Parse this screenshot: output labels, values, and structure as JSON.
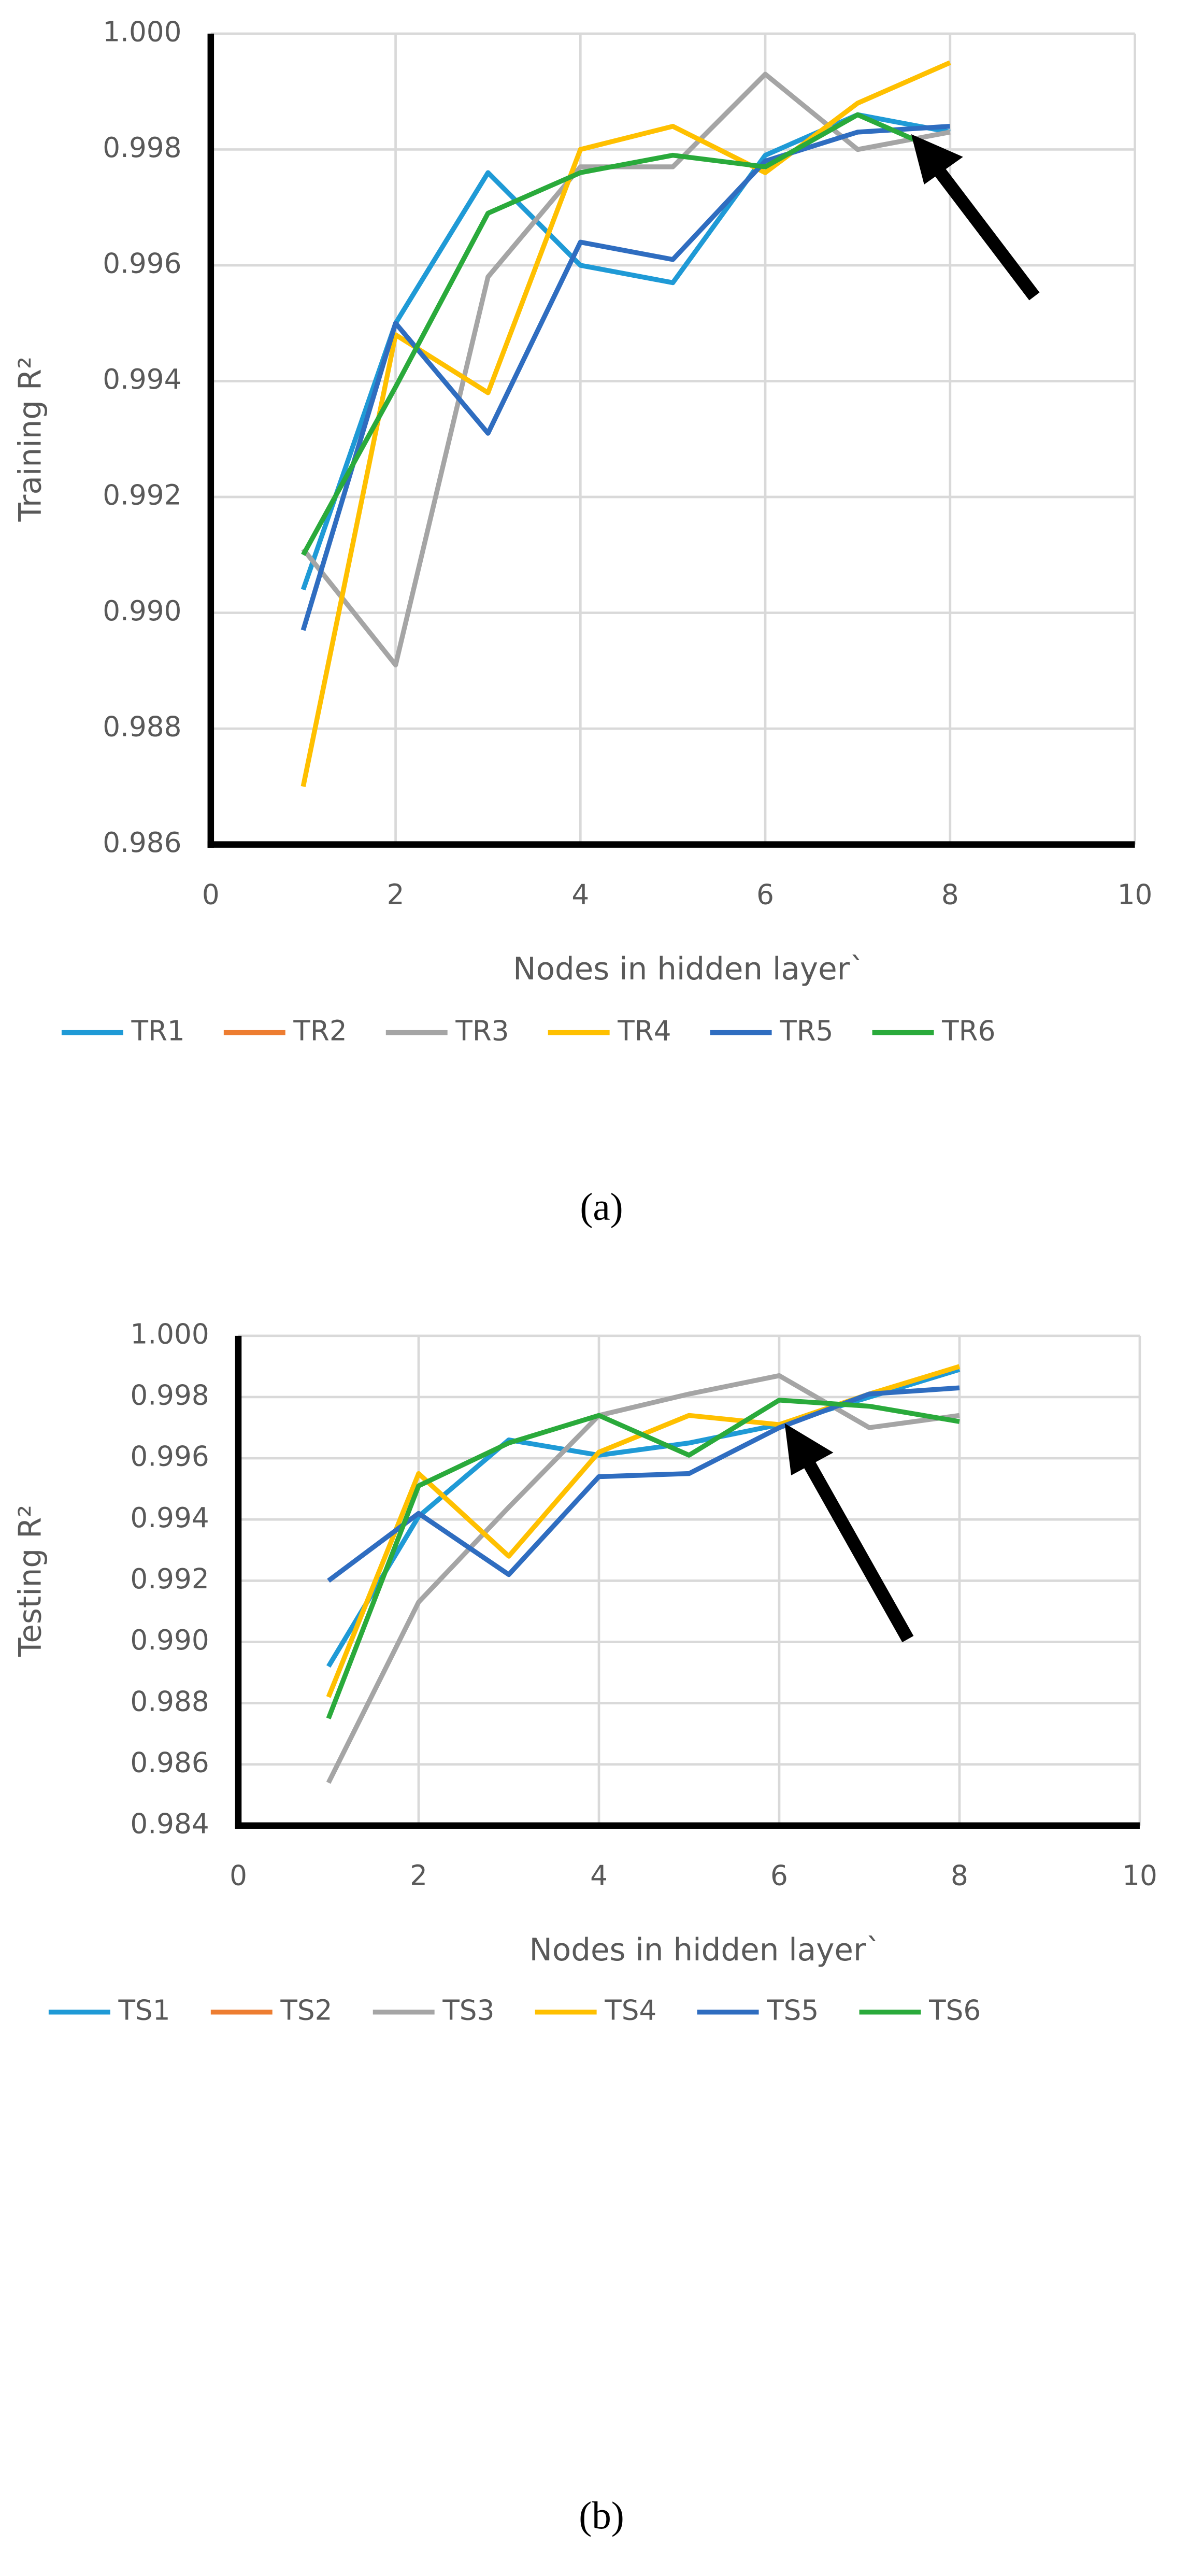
{
  "chart_data": [
    {
      "type": "line",
      "xlabel": "Nodes in hidden layer`",
      "ylabel": "Training R²",
      "caption": "(a)",
      "x": [
        1,
        2,
        3,
        4,
        5,
        6,
        7,
        8
      ],
      "xlim": [
        0,
        10
      ],
      "xticks": [
        0,
        2,
        4,
        6,
        8,
        10
      ],
      "ylim": [
        0.986,
        1
      ],
      "yticks": [
        0.986,
        0.988,
        {
          "value": 0.99,
          "label": "0.990"
        },
        0.992,
        0.994,
        0.996,
        0.998,
        {
          "value": 1,
          "label": "1.000"
        }
      ],
      "grid": true,
      "legend": "bottom",
      "series": [
        {
          "name": "TR1",
          "color": "#1f9ad6",
          "values": [
            0.9904,
            0.995,
            0.9976,
            0.996,
            0.9957,
            0.9979,
            0.9986,
            0.9983
          ]
        },
        {
          "name": "TR2",
          "color": "#ed7d31",
          "values": [
            null,
            null,
            null,
            null,
            null,
            null,
            null,
            null
          ]
        },
        {
          "name": "TR3",
          "color": "#a5a5a5",
          "values": [
            0.9911,
            0.9891,
            0.9958,
            0.9977,
            0.9977,
            0.9993,
            0.998,
            0.9983
          ]
        },
        {
          "name": "TR4",
          "color": "#ffc000",
          "values": [
            0.987,
            0.9948,
            0.9938,
            0.998,
            0.9984,
            0.9976,
            0.9988,
            0.9995
          ]
        },
        {
          "name": "TR5",
          "color": "#2f6dc0",
          "values": [
            0.9897,
            0.995,
            0.9931,
            0.9964,
            0.9961,
            0.9978,
            0.9983,
            0.9984
          ]
        },
        {
          "name": "TR6",
          "color": "#2aaa3b",
          "values": [
            0.991,
            0.9939,
            0.9969,
            0.9976,
            0.9979,
            0.9977,
            0.9986,
            0.9979
          ]
        }
      ]
    },
    {
      "type": "line",
      "xlabel": "Nodes in hidden layer`",
      "ylabel": "Testing R²",
      "caption": "(b)",
      "x": [
        1,
        2,
        3,
        4,
        5,
        6,
        7,
        8
      ],
      "xlim": [
        0,
        10
      ],
      "xticks": [
        0,
        2,
        4,
        6,
        8,
        10
      ],
      "ylim": [
        0.984,
        1
      ],
      "yticks": [
        0.984,
        0.986,
        0.988,
        {
          "value": 0.99,
          "label": "0.990"
        },
        0.992,
        0.994,
        0.996,
        0.998,
        {
          "value": 1,
          "label": "1.000"
        }
      ],
      "grid": true,
      "legend": "bottom",
      "series": [
        {
          "name": "TS1",
          "color": "#1f9ad6",
          "values": [
            0.9892,
            0.9941,
            0.9966,
            0.9961,
            0.9965,
            0.9971,
            0.998,
            0.9989
          ]
        },
        {
          "name": "TS2",
          "color": "#ed7d31",
          "values": [
            null,
            null,
            null,
            null,
            null,
            null,
            null,
            null
          ]
        },
        {
          "name": "TS3",
          "color": "#a5a5a5",
          "values": [
            0.9854,
            0.9913,
            0.9944,
            0.9974,
            0.9981,
            0.9987,
            0.997,
            0.9974
          ]
        },
        {
          "name": "TS4",
          "color": "#ffc000",
          "values": [
            0.9882,
            0.9955,
            0.9928,
            0.9962,
            0.9974,
            0.9971,
            0.9981,
            0.999
          ]
        },
        {
          "name": "TS5",
          "color": "#2f6dc0",
          "values": [
            0.992,
            0.9942,
            0.9922,
            0.9954,
            0.9955,
            0.997,
            0.9981,
            0.9983
          ]
        },
        {
          "name": "TS6",
          "color": "#2aaa3b",
          "values": [
            0.9875,
            0.9951,
            0.9965,
            0.9974,
            0.9961,
            0.9979,
            0.9977,
            0.9972
          ]
        }
      ]
    }
  ]
}
